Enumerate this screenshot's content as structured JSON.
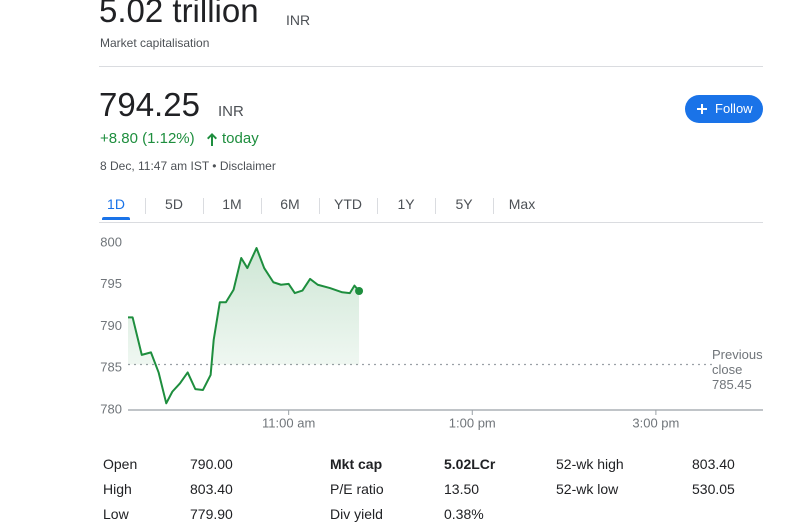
{
  "market_cap": {
    "value": "5.02 trillion",
    "currency": "INR",
    "label": "Market capitalisation"
  },
  "quote": {
    "price": "794.25",
    "currency": "INR",
    "change": "+8.80 (1.12%)",
    "period": "today",
    "timestamp": "8 Dec, 11:47 am IST • Disclaimer",
    "follow": "Follow"
  },
  "tabs": [
    "1D",
    "5D",
    "1M",
    "6M",
    "YTD",
    "1Y",
    "5Y",
    "Max"
  ],
  "selected_tab": 0,
  "chart_data": {
    "type": "line",
    "color": "#1e8e3e",
    "x": [
      555,
      558,
      564,
      570,
      575,
      580,
      584,
      589,
      594,
      599,
      604,
      609,
      611,
      615,
      619,
      624,
      629,
      633,
      639,
      644,
      650,
      655,
      660,
      664,
      669,
      674,
      679,
      687,
      695,
      700,
      703,
      706
    ],
    "values": [
      791.1,
      791.1,
      786.6,
      786.9,
      784.5,
      780.8,
      782.2,
      783.2,
      784.5,
      782.5,
      782.4,
      784.2,
      788.4,
      792.9,
      792.9,
      794.4,
      798.2,
      797.0,
      799.4,
      797.0,
      795.3,
      795.0,
      795.1,
      794.0,
      794.3,
      795.7,
      795.0,
      794.6,
      794.1,
      794.0,
      794.9,
      794.25
    ],
    "xlim": [
      555,
      970
    ],
    "xticks": [
      {
        "value": 660,
        "label": "11:00 am"
      },
      {
        "value": 780,
        "label": "1:00 pm"
      },
      {
        "value": 900,
        "label": "3:00 pm"
      }
    ],
    "ylim": [
      780,
      800
    ],
    "yticks": [
      780,
      785,
      790,
      795,
      800
    ],
    "reference": {
      "label": "Previous close",
      "value": 785.45
    }
  },
  "stats": [
    [
      "Open",
      "790.00"
    ],
    [
      "High",
      "803.40"
    ],
    [
      "Low",
      "779.90"
    ],
    [
      "Mkt cap",
      "5.02LCr"
    ],
    [
      "P/E ratio",
      "13.50"
    ],
    [
      "Div yield",
      "0.38%"
    ],
    [
      "52-wk high",
      "803.40"
    ],
    [
      "52-wk low",
      "530.05"
    ]
  ]
}
